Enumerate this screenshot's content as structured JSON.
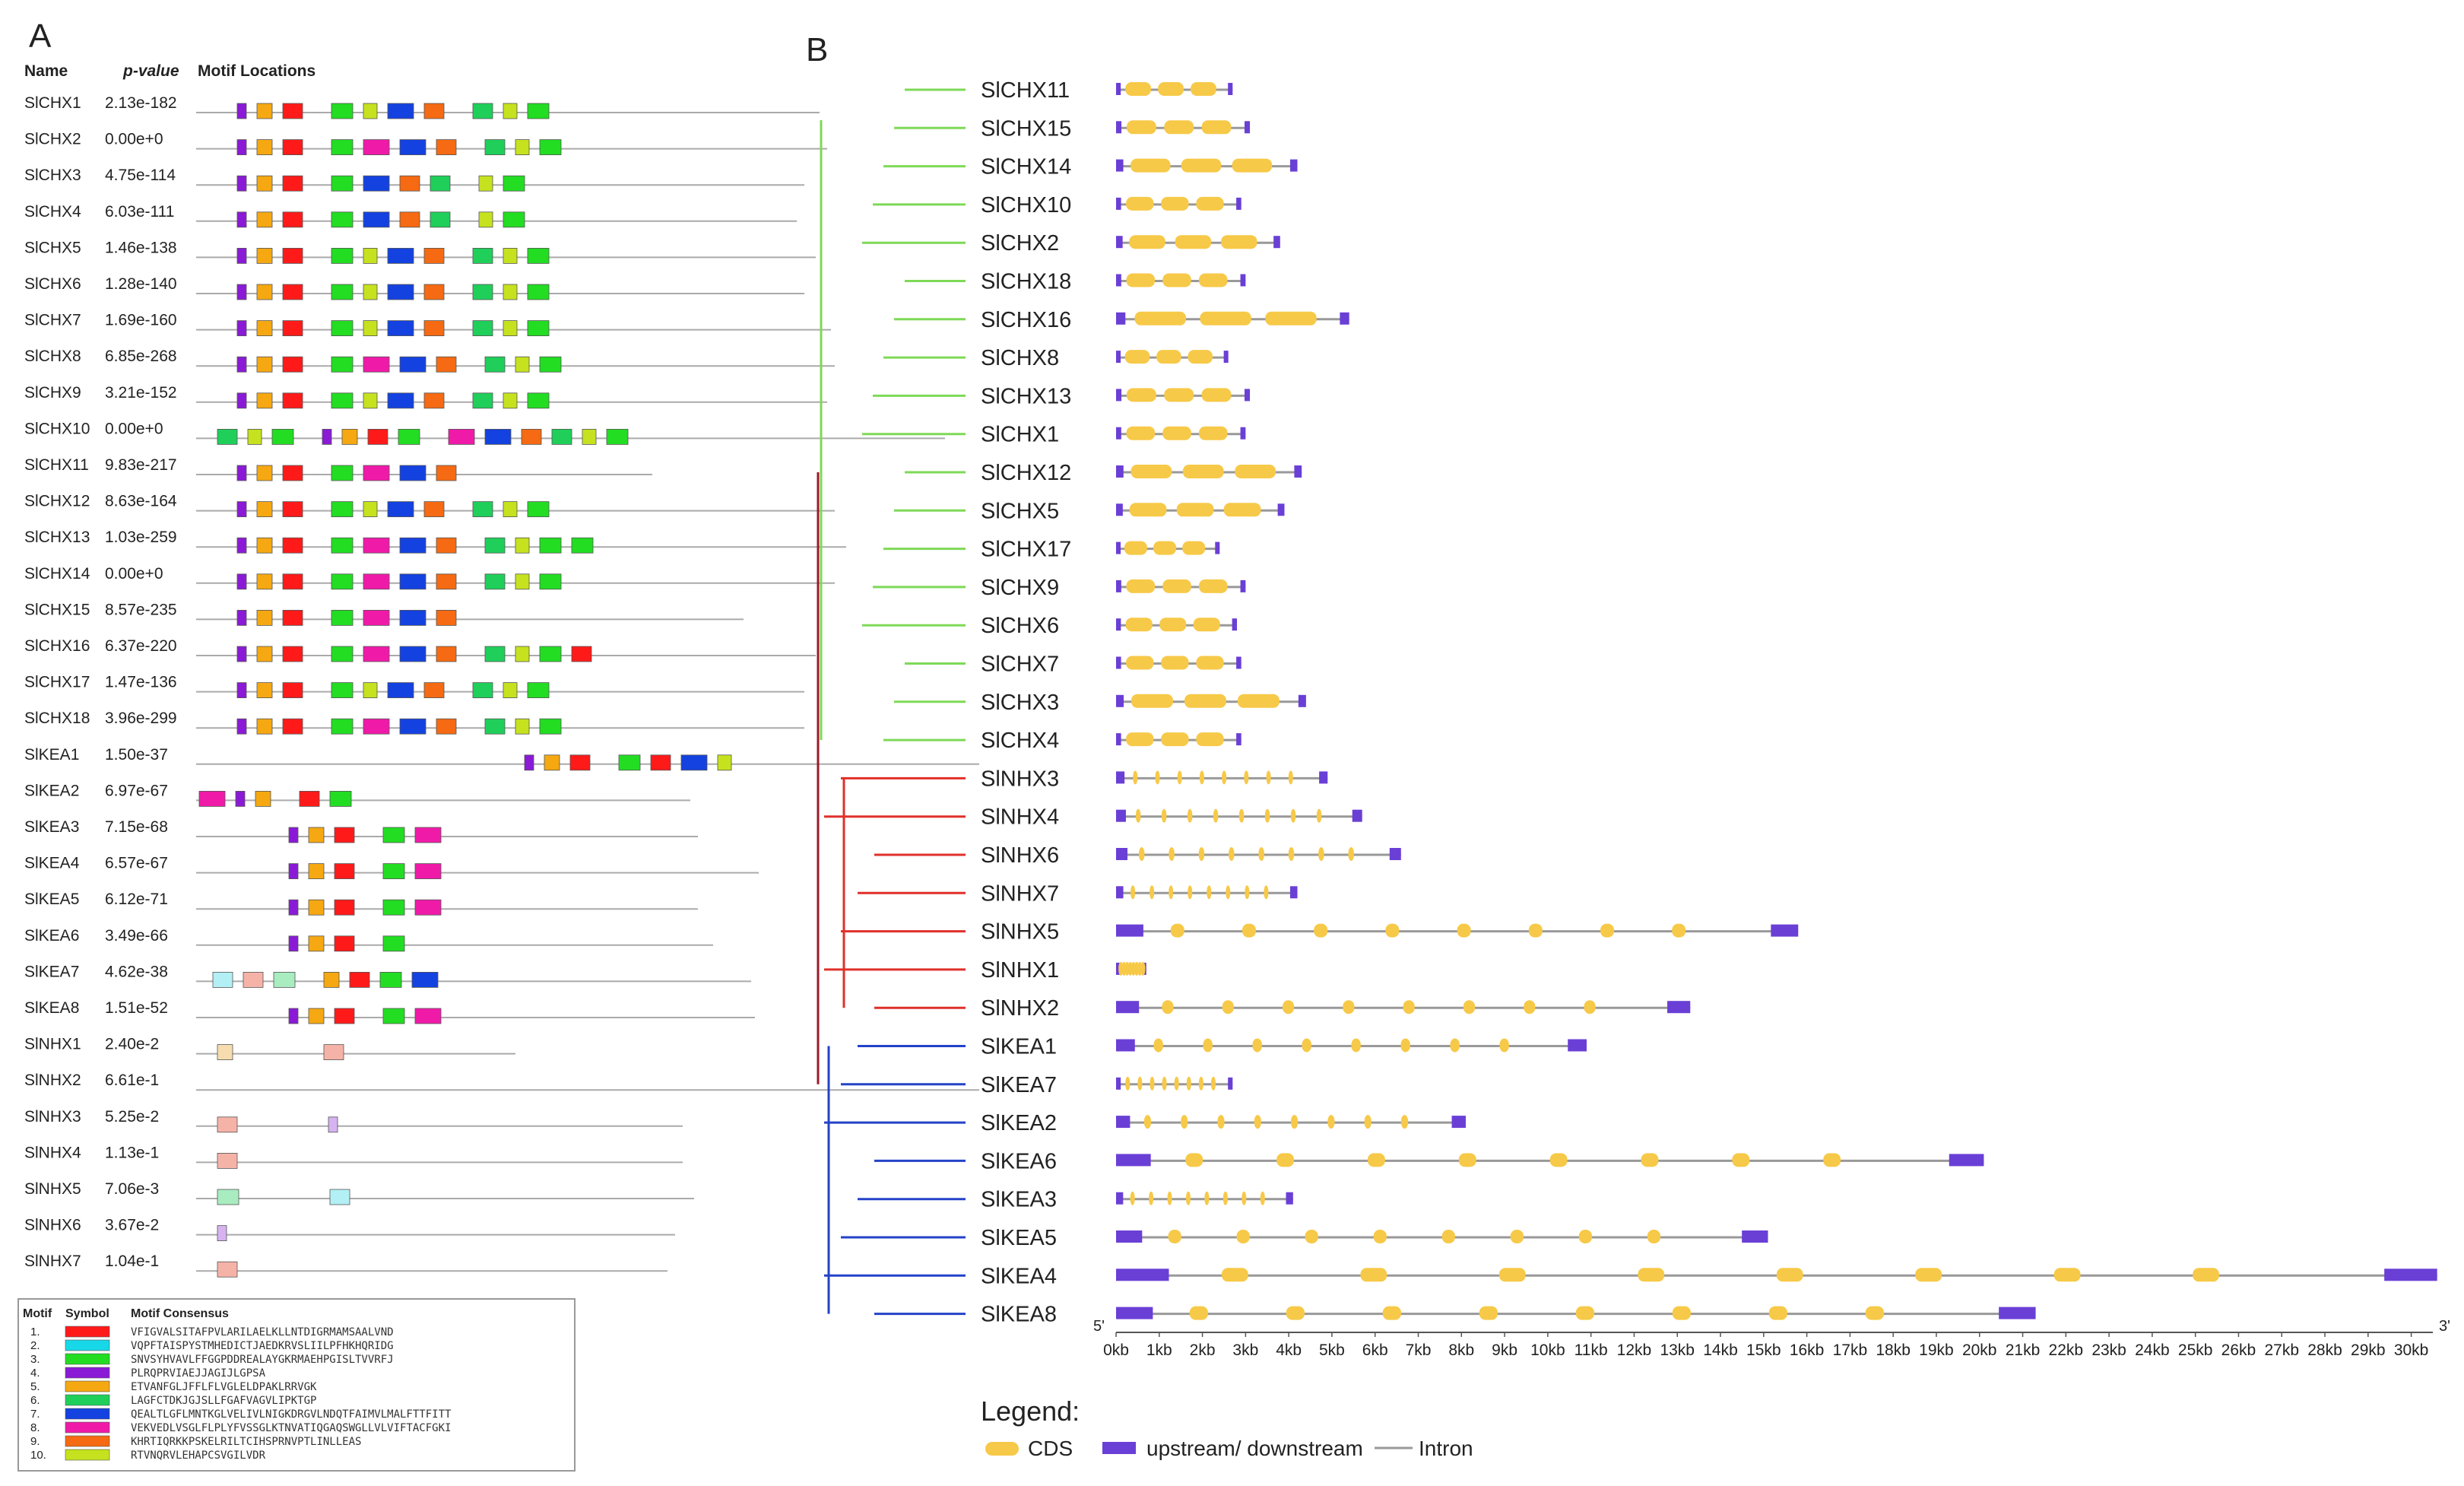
{
  "panel_a": {
    "label": "A",
    "headers": {
      "name": "Name",
      "pvalue": "p-value",
      "locations": "Motif Locations"
    },
    "rows": [
      {
        "name": "SlCHX1",
        "p": "2.13e-182",
        "motifs": [
          4,
          5,
          1,
          3,
          10,
          7,
          9,
          6,
          10,
          3
        ]
      },
      {
        "name": "SlCHX2",
        "p": "0.00e+0",
        "motifs": [
          4,
          5,
          1,
          3,
          8,
          7,
          9,
          6,
          10,
          3
        ]
      },
      {
        "name": "SlCHX3",
        "p": "4.75e-114",
        "motifs": [
          4,
          5,
          1,
          3,
          7,
          9,
          6,
          10,
          3
        ]
      },
      {
        "name": "SlCHX4",
        "p": "6.03e-111",
        "motifs": [
          4,
          5,
          1,
          3,
          7,
          9,
          6,
          10,
          3
        ]
      },
      {
        "name": "SlCHX5",
        "p": "1.46e-138",
        "motifs": [
          4,
          5,
          1,
          3,
          10,
          7,
          9,
          6,
          10,
          3
        ]
      },
      {
        "name": "SlCHX6",
        "p": "1.28e-140",
        "motifs": [
          4,
          5,
          1,
          3,
          10,
          7,
          9,
          6,
          10,
          3
        ]
      },
      {
        "name": "SlCHX7",
        "p": "1.69e-160",
        "motifs": [
          4,
          5,
          1,
          3,
          10,
          7,
          9,
          6,
          10,
          3
        ]
      },
      {
        "name": "SlCHX8",
        "p": "6.85e-268",
        "motifs": [
          4,
          5,
          1,
          3,
          8,
          7,
          9,
          6,
          10,
          3
        ]
      },
      {
        "name": "SlCHX9",
        "p": "3.21e-152",
        "motifs": [
          4,
          5,
          1,
          3,
          10,
          7,
          9,
          6,
          10,
          3
        ]
      },
      {
        "name": "SlCHX10",
        "p": "0.00e+0",
        "motifs": [
          6,
          10,
          3,
          4,
          5,
          1,
          3,
          8,
          7,
          9,
          6,
          10,
          3
        ]
      },
      {
        "name": "SlCHX11",
        "p": "9.83e-217",
        "motifs": [
          4,
          5,
          1,
          3,
          8,
          7,
          9
        ]
      },
      {
        "name": "SlCHX12",
        "p": "8.63e-164",
        "motifs": [
          4,
          5,
          1,
          3,
          10,
          7,
          9,
          6,
          10,
          3
        ]
      },
      {
        "name": "SlCHX13",
        "p": "1.03e-259",
        "motifs": [
          4,
          5,
          1,
          3,
          8,
          7,
          9,
          6,
          10,
          3,
          3
        ]
      },
      {
        "name": "SlCHX14",
        "p": "0.00e+0",
        "motifs": [
          4,
          5,
          1,
          3,
          8,
          7,
          9,
          6,
          10,
          3
        ]
      },
      {
        "name": "SlCHX15",
        "p": "8.57e-235",
        "motifs": [
          4,
          5,
          1,
          3,
          8,
          7,
          9
        ]
      },
      {
        "name": "SlCHX16",
        "p": "6.37e-220",
        "motifs": [
          4,
          5,
          1,
          3,
          8,
          7,
          9,
          6,
          10,
          3,
          1
        ]
      },
      {
        "name": "SlCHX17",
        "p": "1.47e-136",
        "motifs": [
          4,
          5,
          1,
          3,
          10,
          7,
          9,
          6,
          10,
          3
        ]
      },
      {
        "name": "SlCHX18",
        "p": "3.96e-299",
        "motifs": [
          4,
          5,
          1,
          3,
          8,
          7,
          9,
          6,
          10,
          3
        ]
      },
      {
        "name": "SlKEA1",
        "p": "1.50e-37",
        "motifs": [
          4,
          5,
          1,
          3,
          1,
          7,
          10
        ]
      },
      {
        "name": "SlKEA2",
        "p": "6.97e-67",
        "motifs": [
          8,
          4,
          5,
          1,
          3
        ]
      },
      {
        "name": "SlKEA3",
        "p": "7.15e-68",
        "motifs": [
          4,
          5,
          1,
          3,
          8
        ]
      },
      {
        "name": "SlKEA4",
        "p": "6.57e-67",
        "motifs": [
          4,
          5,
          1,
          3,
          8
        ]
      },
      {
        "name": "SlKEA5",
        "p": "6.12e-71",
        "motifs": [
          4,
          5,
          1,
          3,
          8
        ]
      },
      {
        "name": "SlKEA6",
        "p": "3.49e-66",
        "motifs": [
          4,
          5,
          1,
          3
        ]
      },
      {
        "name": "SlKEA7",
        "p": "4.62e-38",
        "motifs": [
          6,
          1,
          3,
          5,
          1,
          3,
          7
        ]
      },
      {
        "name": "SlKEA8",
        "p": "1.51e-52",
        "motifs": [
          4,
          5,
          1,
          3,
          8
        ]
      },
      {
        "name": "SlNHX1",
        "p": "2.40e-2",
        "motifs": [
          5,
          1
        ]
      },
      {
        "name": "SlNHX2",
        "p": "6.61e-1",
        "motifs": []
      },
      {
        "name": "SlNHX3",
        "p": "5.25e-2",
        "motifs": [
          1,
          4
        ]
      },
      {
        "name": "SlNHX4",
        "p": "1.13e-1",
        "motifs": [
          1
        ]
      },
      {
        "name": "SlNHX5",
        "p": "7.06e-3",
        "motifs": [
          3,
          6
        ]
      },
      {
        "name": "SlNHX6",
        "p": "3.67e-2",
        "motifs": [
          4
        ]
      },
      {
        "name": "SlNHX7",
        "p": "1.04e-1",
        "motifs": [
          1
        ]
      }
    ],
    "legend_headers": {
      "motif": "Motif",
      "symbol": "Symbol",
      "consensus": "Motif Consensus"
    },
    "motif_legend": [
      {
        "num": "1.",
        "color": "#ff1a1a",
        "consensus": "VFIGVALSITAFPVLARILAELKLLNTDIGRMAMSAALVND"
      },
      {
        "num": "2.",
        "color": "#17d8e8",
        "consensus": "VQPFTAISPYSTMHEDICTJAEDKRVSLIILPFHKHQRIDG"
      },
      {
        "num": "3.",
        "color": "#22dd22",
        "consensus": "SNVSYHVAVLFFGGPDDREALAYGKRMAEHPGISLTVVRFJ"
      },
      {
        "num": "4.",
        "color": "#8a1ad6",
        "consensus": "PLRQPRVIAEJJAGIJLGPSA"
      },
      {
        "num": "5.",
        "color": "#f5a811",
        "consensus": "ETVANFGLJFFLFLVGLELDPAKLRRVGK"
      },
      {
        "num": "6.",
        "color": "#1fcf5a",
        "consensus": "LAGFCTDKJGJSLLFGAFVAGVLIPKTGP"
      },
      {
        "num": "7.",
        "color": "#1442e0",
        "consensus": "QEALTLGFLMNTKGLVELIVLNIGKDRGVLNDQTFAIMVLMALFTTFITT"
      },
      {
        "num": "8.",
        "color": "#f01aa8",
        "consensus": "VEKVEDLVSGLFLPLYFVSSGLKTNVATIQGAQSWGLLVLVIFTACFGKI"
      },
      {
        "num": "9.",
        "color": "#f56a12",
        "consensus": "KHRTIQRKKPSKELRILTCIHSPRNVPTLINLLEAS"
      },
      {
        "num": "10.",
        "color": "#c6e21f",
        "consensus": "RTVNQRVLEHAPCSVGILVDR"
      }
    ]
  },
  "panel_b": {
    "label": "B",
    "tree_colors": {
      "chx": "#7ed957",
      "nhx": "#e0302a",
      "kea": "#2442c8",
      "root": "#9b1a2a"
    },
    "genes": [
      {
        "name": "SlCHX11",
        "end_kb": 2.7
      },
      {
        "name": "SlCHX15",
        "end_kb": 3.1
      },
      {
        "name": "SlCHX14",
        "end_kb": 4.2
      },
      {
        "name": "SlCHX10",
        "end_kb": 2.9
      },
      {
        "name": "SlCHX2",
        "end_kb": 3.8
      },
      {
        "name": "SlCHX18",
        "end_kb": 3.0
      },
      {
        "name": "SlCHX16",
        "end_kb": 5.4
      },
      {
        "name": "SlCHX8",
        "end_kb": 2.6
      },
      {
        "name": "SlCHX13",
        "end_kb": 3.1
      },
      {
        "name": "SlCHX1",
        "end_kb": 3.0
      },
      {
        "name": "SlCHX12",
        "end_kb": 4.3
      },
      {
        "name": "SlCHX5",
        "end_kb": 3.9
      },
      {
        "name": "SlCHX17",
        "end_kb": 2.4
      },
      {
        "name": "SlCHX9",
        "end_kb": 3.0
      },
      {
        "name": "SlCHX6",
        "end_kb": 2.8
      },
      {
        "name": "SlCHX7",
        "end_kb": 2.9
      },
      {
        "name": "SlCHX3",
        "end_kb": 4.4
      },
      {
        "name": "SlCHX4",
        "end_kb": 2.9
      },
      {
        "name": "SlNHX3",
        "end_kb": 4.9
      },
      {
        "name": "SlNHX4",
        "end_kb": 5.7
      },
      {
        "name": "SlNHX6",
        "end_kb": 6.6
      },
      {
        "name": "SlNHX7",
        "end_kb": 4.2
      },
      {
        "name": "SlNHX5",
        "end_kb": 15.8
      },
      {
        "name": "SlNHX1",
        "end_kb": 0.7
      },
      {
        "name": "SlNHX2",
        "end_kb": 13.3
      },
      {
        "name": "SlKEA1",
        "end_kb": 10.9
      },
      {
        "name": "SlKEA7",
        "end_kb": 2.7
      },
      {
        "name": "SlKEA2",
        "end_kb": 8.1
      },
      {
        "name": "SlKEA6",
        "end_kb": 20.1
      },
      {
        "name": "SlKEA3",
        "end_kb": 4.1
      },
      {
        "name": "SlKEA5",
        "end_kb": 15.1
      },
      {
        "name": "SlKEA4",
        "end_kb": 30.6
      },
      {
        "name": "SlKEA8",
        "end_kb": 21.3
      }
    ],
    "axis": {
      "five_prime": "5'",
      "three_prime": "3'",
      "ticks": [
        "0kb",
        "1kb",
        "2kb",
        "3kb",
        "4kb",
        "5kb",
        "6kb",
        "7kb",
        "8kb",
        "9kb",
        "10kb",
        "11kb",
        "12kb",
        "13kb",
        "14kb",
        "15kb",
        "16kb",
        "17kb",
        "18kb",
        "19kb",
        "20kb",
        "21kb",
        "22kb",
        "23kb",
        "24kb",
        "25kb",
        "26kb",
        "27kb",
        "28kb",
        "29kb",
        "30kb"
      ],
      "max_kb": 30.5
    },
    "legend": {
      "title": "Legend:",
      "cds": "CDS",
      "utr": "upstream/ downstream",
      "intron": "Intron",
      "cds_color": "#f7c948",
      "utr_color": "#6a3fd6",
      "intron_color": "#999999"
    }
  }
}
